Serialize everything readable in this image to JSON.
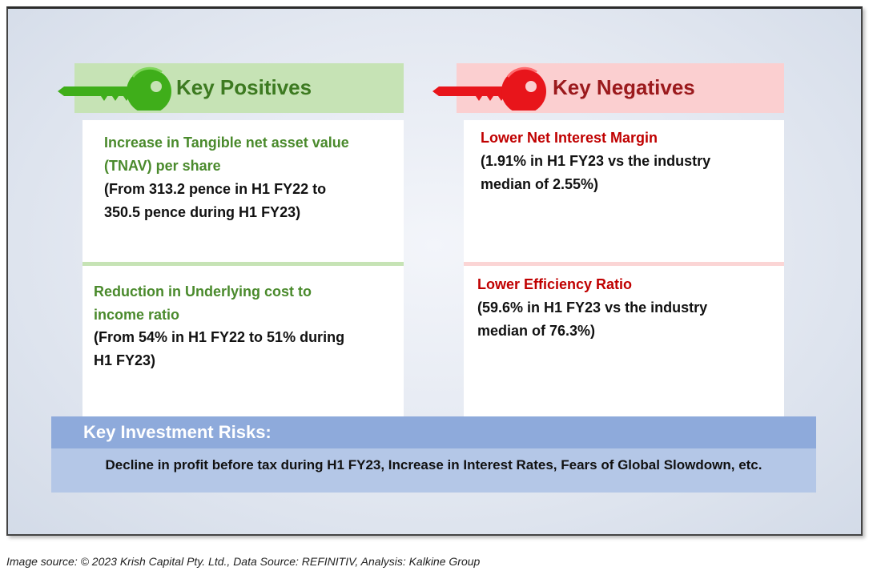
{
  "positives": {
    "title": "Key Positives",
    "color": "#3d7a21",
    "items": [
      {
        "heading": [
          "Increase in Tangible net asset value",
          "(TNAV) per share"
        ],
        "detail": [
          "(From 313.2 pence in H1 FY22 to",
          "350.5 pence during H1 FY23)"
        ]
      },
      {
        "heading": [
          "Reduction in Underlying cost to",
          "income ratio"
        ],
        "detail": [
          "(From 54% in H1 FY22 to 51% during",
          "H1 FY23)"
        ]
      }
    ]
  },
  "negatives": {
    "title": "Key Negatives",
    "color": "#c00000",
    "items": [
      {
        "heading": [
          "Lower Net Interest Margin"
        ],
        "detail": [
          "(1.91% in H1 FY23 vs the industry",
          "median of 2.55%)"
        ]
      },
      {
        "heading": [
          "Lower Efficiency Ratio"
        ],
        "detail": [
          "(59.6% in H1 FY23 vs the industry",
          "median of 76.3%)"
        ]
      }
    ]
  },
  "risks": {
    "title": "Key Investment Risks:",
    "text": "Decline in profit before tax during H1 FY23, Increase in Interest Rates, Fears of Global Slowdown, etc."
  },
  "caption": "Image source: © 2023 Krish Capital Pty. Ltd., Data Source: REFINITIV, Analysis: Kalkine Group",
  "icons": {
    "positive_key": "key-icon-green",
    "negative_key": "key-icon-red"
  }
}
